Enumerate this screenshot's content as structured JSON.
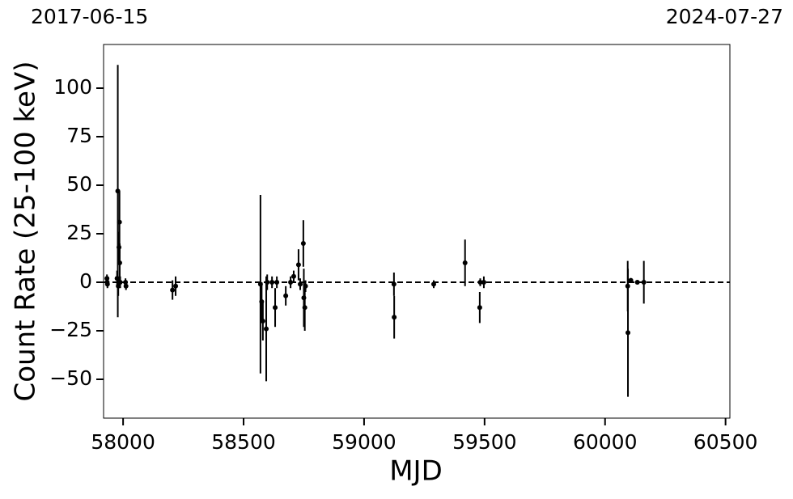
{
  "chart_data": {
    "type": "errorbar",
    "xlabel": "MJD",
    "ylabel": "Count Rate (25-100 keV)",
    "date_labels": [
      "2017-06-15",
      "2024-07-27"
    ],
    "xlim": [
      57919,
      60518
    ],
    "ylim": [
      -70,
      122.5
    ],
    "xticks": [
      58000,
      58500,
      59000,
      59500,
      60000,
      60500
    ],
    "yticks": [
      {
        "value": -50,
        "label": "−50"
      },
      {
        "value": -25,
        "label": "−25"
      },
      0,
      25,
      50,
      75,
      100
    ],
    "hline": 0,
    "color": "#000000",
    "x": [
      57933,
      57934,
      57935,
      57975,
      57978,
      57980,
      57983,
      57985,
      57986,
      57988,
      58010,
      58012,
      58205,
      58218,
      58570,
      58575,
      58580,
      58594,
      58598,
      58618,
      58631,
      58638,
      58675,
      58695,
      58708,
      58728,
      58735,
      58748,
      58750,
      58754,
      58757,
      59124,
      59125,
      59289,
      59419,
      59480,
      59482,
      59497,
      60094,
      60095,
      60107,
      60134,
      60161
    ],
    "values": [
      2,
      0,
      -1,
      2,
      47,
      -2,
      18,
      31,
      10,
      0,
      0,
      -2,
      -4,
      -2,
      -1,
      -10,
      -20,
      -24,
      0,
      0,
      -13,
      0,
      -7,
      0,
      3,
      9,
      -1,
      20,
      -8,
      -13,
      -2,
      -1,
      -18,
      -1,
      10,
      -13,
      0,
      0,
      -2,
      -26,
      1,
      0,
      0
    ],
    "errors": [
      2,
      2,
      2,
      4,
      65,
      5,
      8,
      16,
      10,
      3,
      2,
      2,
      5,
      5,
      46,
      10,
      10,
      27,
      4,
      3,
      10,
      3,
      5,
      3,
      3,
      8,
      3,
      12,
      15,
      12,
      3,
      6,
      11,
      2,
      12,
      8,
      2,
      3,
      13,
      33,
      1,
      1,
      11
    ]
  }
}
